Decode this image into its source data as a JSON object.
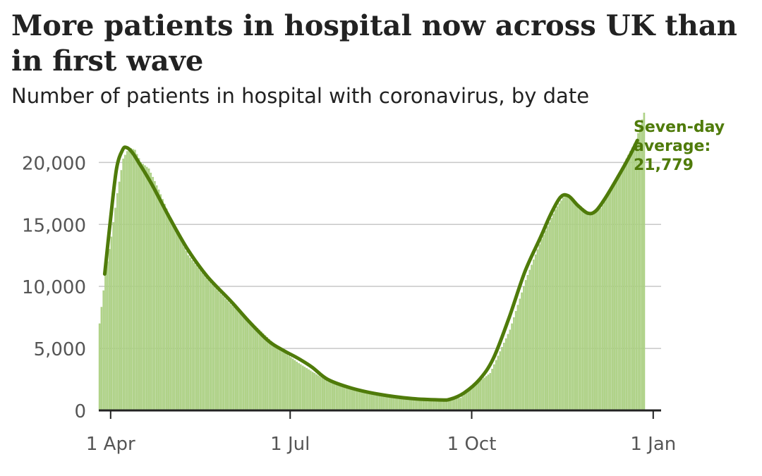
{
  "chart_data": {
    "type": "bar",
    "title": "More patients in hospital now across UK than in first wave",
    "subtitle": "Number of patients in hospital with coronavirus, by date",
    "xlabel": "",
    "ylabel": "",
    "x_tick_labels": [
      "1 Apr",
      "1 Jul",
      "1 Oct",
      "1 Jan"
    ],
    "x_tick_dates": [
      "2020-04-01",
      "2020-07-01",
      "2020-10-01",
      "2021-01-01"
    ],
    "x_range": [
      "2020-03-26",
      "2021-01-05"
    ],
    "y_ticks": [
      0,
      5000,
      10000,
      15000,
      20000
    ],
    "y_tick_labels": [
      "0",
      "5,000",
      "10,000",
      "15,000",
      "20,000"
    ],
    "ylim": [
      0,
      24000
    ],
    "grid": true,
    "daily_start_date": "2020-03-26",
    "daily_end_date": "2020-12-27",
    "daily_anchors": [
      {
        "date": "2020-03-26",
        "value": 7000
      },
      {
        "date": "2020-03-29",
        "value": 11000
      },
      {
        "date": "2020-04-01",
        "value": 14000
      },
      {
        "date": "2020-04-04",
        "value": 17500
      },
      {
        "date": "2020-04-07",
        "value": 20300
      },
      {
        "date": "2020-04-10",
        "value": 21200
      },
      {
        "date": "2020-04-13",
        "value": 21000
      },
      {
        "date": "2020-04-16",
        "value": 20000
      },
      {
        "date": "2020-04-20",
        "value": 19500
      },
      {
        "date": "2020-04-25",
        "value": 17800
      },
      {
        "date": "2020-05-01",
        "value": 15500
      },
      {
        "date": "2020-05-10",
        "value": 12500
      },
      {
        "date": "2020-05-20",
        "value": 10500
      },
      {
        "date": "2020-06-01",
        "value": 8500
      },
      {
        "date": "2020-06-15",
        "value": 6500
      },
      {
        "date": "2020-06-25",
        "value": 5000
      },
      {
        "date": "2020-07-05",
        "value": 3800
      },
      {
        "date": "2020-07-20",
        "value": 2300
      },
      {
        "date": "2020-08-01",
        "value": 1700
      },
      {
        "date": "2020-08-15",
        "value": 1200
      },
      {
        "date": "2020-09-01",
        "value": 900
      },
      {
        "date": "2020-09-15",
        "value": 800
      },
      {
        "date": "2020-09-25",
        "value": 1000
      },
      {
        "date": "2020-10-01",
        "value": 1900
      },
      {
        "date": "2020-10-10",
        "value": 3000
      },
      {
        "date": "2020-10-20",
        "value": 6500
      },
      {
        "date": "2020-10-28",
        "value": 10500
      },
      {
        "date": "2020-11-05",
        "value": 13800
      },
      {
        "date": "2020-11-12",
        "value": 16200
      },
      {
        "date": "2020-11-17",
        "value": 17400
      },
      {
        "date": "2020-11-23",
        "value": 16700
      },
      {
        "date": "2020-11-30",
        "value": 15800
      },
      {
        "date": "2020-12-05",
        "value": 16300
      },
      {
        "date": "2020-12-12",
        "value": 18200
      },
      {
        "date": "2020-12-18",
        "value": 20300
      },
      {
        "date": "2020-12-23",
        "value": 21800
      },
      {
        "date": "2020-12-27",
        "value": 24000
      }
    ],
    "series": [
      {
        "name": "Seven-day average",
        "type": "line",
        "color": "#4f7b0a",
        "points": [
          {
            "date": "2020-03-29",
            "value": 11000
          },
          {
            "date": "2020-04-01",
            "value": 15500
          },
          {
            "date": "2020-04-04",
            "value": 19500
          },
          {
            "date": "2020-04-07",
            "value": 21000
          },
          {
            "date": "2020-04-09",
            "value": 21200
          },
          {
            "date": "2020-04-12",
            "value": 20800
          },
          {
            "date": "2020-04-16",
            "value": 19800
          },
          {
            "date": "2020-04-22",
            "value": 18200
          },
          {
            "date": "2020-05-01",
            "value": 15500
          },
          {
            "date": "2020-05-10",
            "value": 13000
          },
          {
            "date": "2020-05-20",
            "value": 10800
          },
          {
            "date": "2020-06-01",
            "value": 8800
          },
          {
            "date": "2020-06-10",
            "value": 7200
          },
          {
            "date": "2020-06-20",
            "value": 5600
          },
          {
            "date": "2020-06-28",
            "value": 4800
          },
          {
            "date": "2020-07-05",
            "value": 4200
          },
          {
            "date": "2020-07-12",
            "value": 3500
          },
          {
            "date": "2020-07-20",
            "value": 2500
          },
          {
            "date": "2020-08-01",
            "value": 1800
          },
          {
            "date": "2020-08-15",
            "value": 1300
          },
          {
            "date": "2020-09-01",
            "value": 950
          },
          {
            "date": "2020-09-15",
            "value": 850
          },
          {
            "date": "2020-09-20",
            "value": 900
          },
          {
            "date": "2020-09-27",
            "value": 1400
          },
          {
            "date": "2020-10-05",
            "value": 2500
          },
          {
            "date": "2020-10-12",
            "value": 4200
          },
          {
            "date": "2020-10-20",
            "value": 7500
          },
          {
            "date": "2020-10-28",
            "value": 11200
          },
          {
            "date": "2020-11-05",
            "value": 14000
          },
          {
            "date": "2020-11-10",
            "value": 15800
          },
          {
            "date": "2020-11-15",
            "value": 17200
          },
          {
            "date": "2020-11-19",
            "value": 17300
          },
          {
            "date": "2020-11-24",
            "value": 16500
          },
          {
            "date": "2020-11-29",
            "value": 15900
          },
          {
            "date": "2020-12-03",
            "value": 16100
          },
          {
            "date": "2020-12-08",
            "value": 17200
          },
          {
            "date": "2020-12-14",
            "value": 18800
          },
          {
            "date": "2020-12-20",
            "value": 20500
          },
          {
            "date": "2020-12-24",
            "value": 21779
          }
        ]
      }
    ],
    "annotation": {
      "lines": [
        "Seven-day",
        "average:",
        "21,779"
      ]
    },
    "bar_color": "#b2d48a",
    "bar_outline_color": "#94c06a",
    "line_color": "#4f7b0a",
    "axis_color": "#222222",
    "grid_color": "#c8c8c8"
  }
}
